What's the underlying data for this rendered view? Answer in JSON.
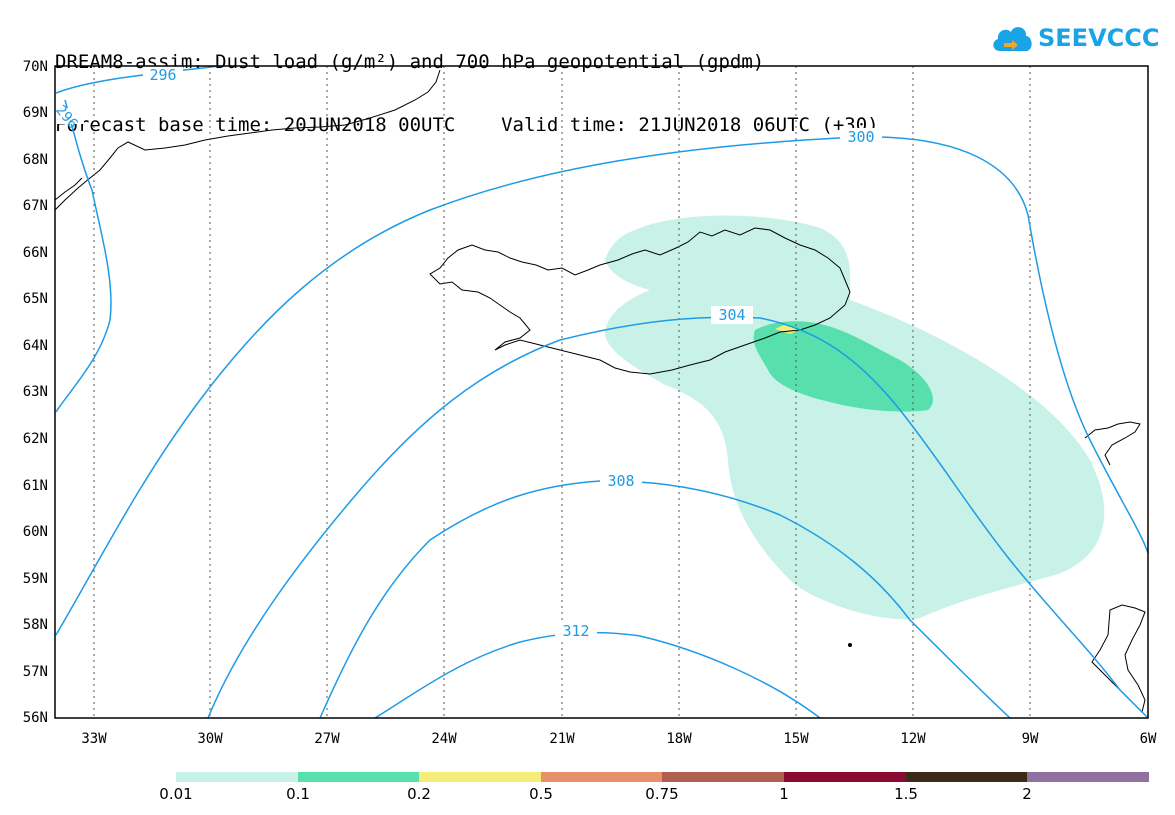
{
  "header": {
    "title_line1": "DREAM8-assim: Dust load (g/m²) and 700 hPa geopotential (gpdm)",
    "title_line2": "Forecast base time: 20JUN2018 00UTC    Valid time: 21JUN2018 06UTC (+30)"
  },
  "logo": {
    "text": "SEEVCCC",
    "icon": "cloud-icon",
    "color": "#1ba3e8"
  },
  "map": {
    "lat_labels": [
      "70N",
      "69N",
      "68N",
      "67N",
      "66N",
      "65N",
      "64N",
      "63N",
      "62N",
      "61N",
      "60N",
      "59N",
      "58N",
      "57N",
      "56N"
    ],
    "lon_labels": [
      "33W",
      "30W",
      "27W",
      "24W",
      "21W",
      "18W",
      "15W",
      "12W",
      "9W",
      "6W"
    ],
    "contour_labels": [
      "296",
      "296",
      "300",
      "304",
      "308",
      "312"
    ],
    "contour_color": "#1e9be6"
  },
  "colorbar": {
    "colors": [
      "#c8f2e8",
      "#57dfae",
      "#f6ec7a",
      "#ea9068",
      "#b06050",
      "#8a0a32",
      "#3c2a18",
      "#9070a0"
    ],
    "labels": [
      "0.01",
      "0.1",
      "0.2",
      "0.5",
      "0.75",
      "1",
      "1.5",
      "2"
    ]
  }
}
